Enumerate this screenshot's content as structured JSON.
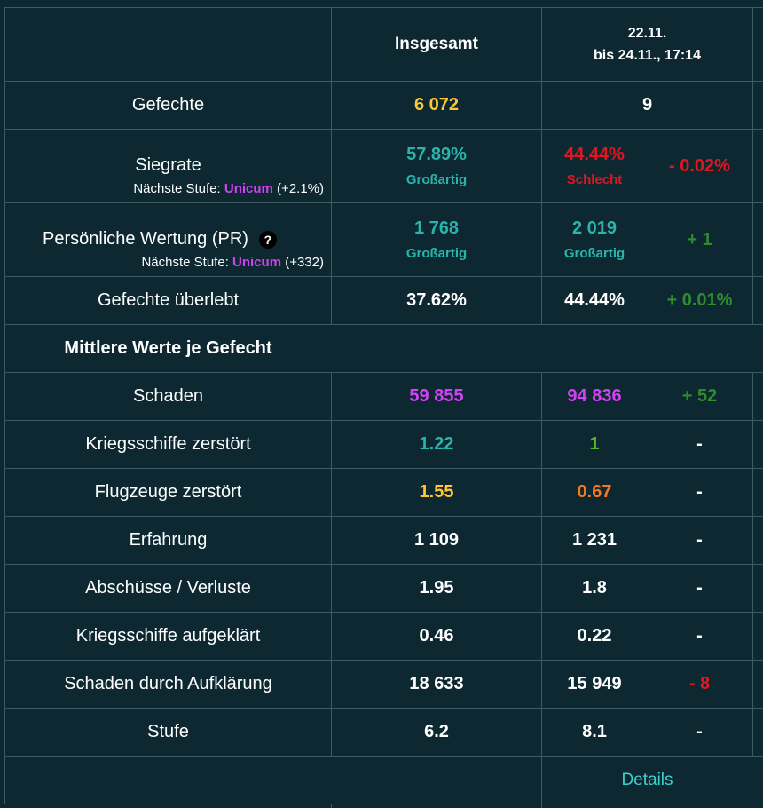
{
  "header": {
    "col_total": "Insgesamt",
    "col_period_line1": "22.11.",
    "col_period_line2": "bis 24.11., 17:14"
  },
  "rows": {
    "battles": {
      "label": "Gefechte",
      "total": "6 072",
      "period": "9",
      "diff": ""
    },
    "winrate": {
      "label": "Siegrate",
      "next_prefix": "Nächste Stufe: ",
      "next_tier": "Unicum",
      "next_suffix": " (+2.1%)",
      "total": "57.89%",
      "total_rating": "Großartig",
      "period": "44.44%",
      "period_rating": "Schlecht",
      "diff": "- 0.02%"
    },
    "pr": {
      "label": "Persönliche Wertung (PR)",
      "help_icon": "?",
      "next_prefix": "Nächste Stufe: ",
      "next_tier": "Unicum",
      "next_suffix": " (+332)",
      "total": "1 768",
      "total_rating": "Großartig",
      "period": "2 019",
      "period_rating": "Großartig",
      "diff": "+ 1"
    },
    "survived": {
      "label": "Gefechte überlebt",
      "total": "37.62%",
      "period": "44.44%",
      "diff": "+ 0.01%"
    }
  },
  "section_title": "Mittlere Werte je Gefecht",
  "avg_rows": [
    {
      "label": "Schaden",
      "total": "59 855",
      "period": "94 836",
      "diff": "+ 52"
    },
    {
      "label": "Kriegsschiffe zerstört",
      "total": "1.22",
      "period": "1",
      "diff": "-"
    },
    {
      "label": "Flugzeuge zerstört",
      "total": "1.55",
      "period": "0.67",
      "diff": "-"
    },
    {
      "label": "Erfahrung",
      "total": "1 109",
      "period": "1 231",
      "diff": "-"
    },
    {
      "label": "Abschüsse / Verluste",
      "total": "1.95",
      "period": "1.8",
      "diff": "-"
    },
    {
      "label": "Kriegsschiffe aufgeklärt",
      "total": "0.46",
      "period": "0.22",
      "diff": "-"
    },
    {
      "label": "Schaden durch Aufklärung",
      "total": "18 633",
      "period": "15 949",
      "diff": "- 8"
    },
    {
      "label": "Stufe",
      "total": "6.2",
      "period": "8.1",
      "diff": "-"
    }
  ],
  "footer": {
    "details_link": "Details"
  },
  "colors": {
    "background": "#0e2832",
    "grid": "#3d5b63",
    "yellow": "#fec734",
    "teal": "#29b5ac",
    "red": "#e2161f",
    "purple": "#d042f3",
    "green": "#2e8b2e",
    "orange": "#f27a21",
    "link": "#3fd1cf"
  }
}
